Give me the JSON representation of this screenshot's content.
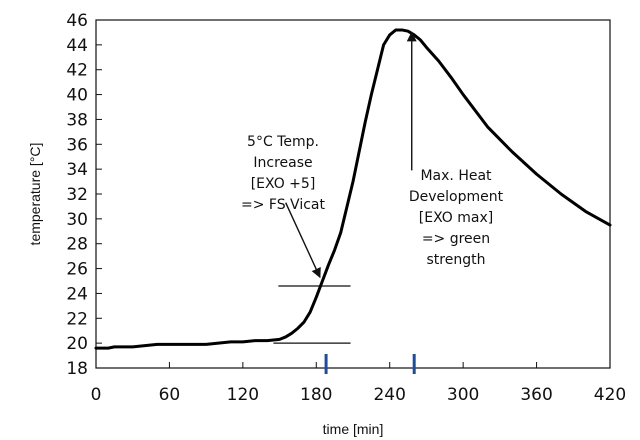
{
  "chart_data": {
    "type": "line",
    "title": "",
    "xlabel": "time [min]",
    "ylabel": "temperature [°C]",
    "xlim": [
      0,
      420
    ],
    "ylim": [
      18,
      46
    ],
    "x_ticks": [
      0,
      60,
      120,
      180,
      240,
      300,
      360,
      420
    ],
    "y_ticks": [
      18,
      20,
      22,
      24,
      26,
      28,
      30,
      32,
      34,
      36,
      38,
      40,
      42,
      44,
      46
    ],
    "grid": false,
    "legend": "none",
    "line_color": "#000000",
    "marker_color": "#1f4e99",
    "series": [
      {
        "x": [
          0,
          10,
          15,
          20,
          30,
          40,
          50,
          60,
          70,
          80,
          90,
          100,
          110,
          120,
          130,
          140,
          150,
          155,
          160,
          165,
          170,
          175,
          180,
          185,
          190,
          195,
          200,
          210,
          220,
          225,
          230,
          235,
          240,
          245,
          250,
          255,
          260,
          265,
          270,
          280,
          290,
          300,
          320,
          340,
          360,
          380,
          400,
          420
        ],
        "y": [
          19.6,
          19.6,
          19.7,
          19.7,
          19.7,
          19.8,
          19.9,
          19.9,
          19.9,
          19.9,
          19.9,
          20.0,
          20.1,
          20.1,
          20.2,
          20.2,
          20.3,
          20.5,
          20.8,
          21.2,
          21.7,
          22.5,
          23.7,
          25.0,
          26.3,
          27.5,
          28.9,
          33.0,
          37.8,
          40.0,
          42.0,
          44.0,
          44.8,
          45.2,
          45.2,
          45.1,
          44.8,
          44.4,
          43.8,
          42.7,
          41.4,
          40.0,
          37.4,
          35.4,
          33.6,
          32.0,
          30.6,
          29.5
        ]
      }
    ],
    "reference_lines": [
      {
        "y": 20.0,
        "x_start": 145,
        "x_end": 208
      },
      {
        "y": 24.6,
        "x_start": 149,
        "x_end": 208
      }
    ],
    "markers": [
      {
        "x": 188
      },
      {
        "x": 260
      }
    ],
    "annotations": [
      {
        "lines": [
          "5°C Temp.",
          "Increase",
          "[EXO +5]",
          "=> FS Vicat"
        ],
        "arrow_from": [
          155,
          31.3
        ],
        "arrow_to": [
          183,
          25.3
        ]
      },
      {
        "lines": [
          "Max. Heat",
          "Development",
          "[EXO max]",
          "=> green",
          "strength"
        ],
        "arrow_from": [
          258,
          33.9
        ],
        "arrow_to": [
          258,
          45.0
        ]
      }
    ]
  }
}
